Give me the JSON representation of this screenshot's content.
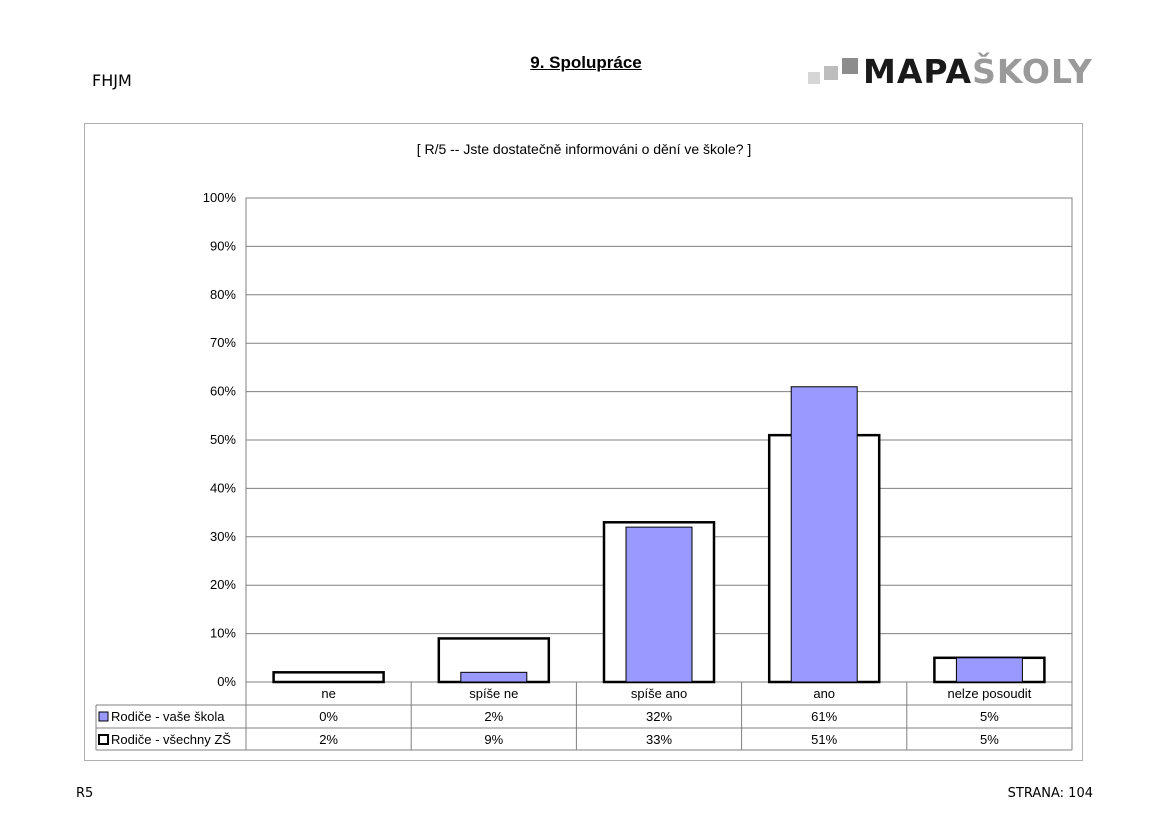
{
  "header": {
    "school_code": "FHJM",
    "section_title": "9. Spolupráce",
    "logo": {
      "text_dark": "MAPA",
      "text_light": "ŠKOLY"
    }
  },
  "footer": {
    "code": "R5",
    "page_label": "STRANA:",
    "page_number": "104"
  },
  "colors": {
    "series_fill": "#9999ff",
    "outline": "#000000",
    "grid": "#808080"
  },
  "chart_data": {
    "type": "bar",
    "title": "[ R/5 -- Jste dostatečně informováni o dění ve škole? ]",
    "categories": [
      "ne",
      "spíše ne",
      "spíše ano",
      "ano",
      "nelze posoudit"
    ],
    "ylim": [
      0,
      1
    ],
    "yticks": [
      "0%",
      "10%",
      "20%",
      "30%",
      "40%",
      "50%",
      "60%",
      "70%",
      "80%",
      "90%",
      "100%"
    ],
    "grid": true,
    "series": [
      {
        "name": "Rodiče - vaše škola",
        "values": [
          0,
          0.02,
          0.32,
          0.61,
          0.05
        ],
        "labels": [
          "0%",
          "2%",
          "32%",
          "61%",
          "5%"
        ],
        "style": "filled"
      },
      {
        "name": "Rodiče - všechny ZŠ",
        "values": [
          0.02,
          0.09,
          0.33,
          0.51,
          0.05
        ],
        "labels": [
          "2%",
          "9%",
          "33%",
          "51%",
          "5%"
        ],
        "style": "outline"
      }
    ],
    "legend": "data-table"
  }
}
